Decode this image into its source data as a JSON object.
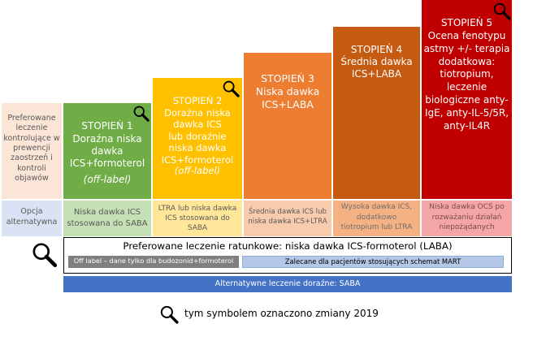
{
  "colors": {
    "pref_bg": "#fbe5d6",
    "alt_bg": "#dae3f3",
    "step1": "#70ad47",
    "step1_light": "#c5e0b4",
    "step2": "#ffc000",
    "step2_light": "#ffe699",
    "step3": "#ed7d31",
    "step3_light": "#f8cbad",
    "step4": "#c55a11",
    "step4_light": "#f4b183",
    "step5": "#c00000",
    "step5_light": "#f4a6a6",
    "offlabel_bar": "#7f7f7f",
    "mart_bar": "#b4c7e7",
    "saba_bar": "#4472c4"
  },
  "left": {
    "preferred_label": "Preferowane\nleczenie\nkontrolujące w\nprewencji\nzaostrzeń i\nkontroli\nobjawów",
    "alternative_label": "Opcja\nalternatywna"
  },
  "steps": [
    {
      "title": "STOPIEŃ 1",
      "body": "Doraźna niska\ndawka\nICS+formoterol",
      "note": "(off-label)",
      "alternative": "Niska dawka ICS\nstosowana do SABA"
    },
    {
      "title": "STOPIEŃ 2",
      "body": "Doraźna niska\ndawka ICS\nlub doraźnie\nniska dawka\nICS+formoterol",
      "note": "(off-label)",
      "alternative": "LTRA lub niska dawka\nICS stosowana do\nSABA"
    },
    {
      "title": "STOPIEŃ 3",
      "body": "Niska dawka\nICS+LABA",
      "alternative": "Średnia dawka ICS lub\nniska dawka ICS+LTRA"
    },
    {
      "title": "STOPIEŃ 4",
      "body": "Średnia dawka\nICS+LABA",
      "alternative": "Wysoka dawka ICS,\ndodatkowo\ntiotropium lub LTRA"
    },
    {
      "title": "STOPIEŃ 5",
      "body": "Ocena fenotypu\nastmy +/- terapia\ndodatkowa:\ntiotropium,\nleczenie\nbiologiczne anty-\nIgE, anty-IL-5/5R,\nanty-IL4R",
      "alternative": "Niska dawka OCS po\nrozważaniu działań\nniepożądanych"
    }
  ],
  "reliever": {
    "title": "Preferowane leczenie ratunkowe: niska dawka ICS-formoterol (LABA)",
    "offlabel": "Off label – dane tylko dla budozonid+formoterol",
    "mart": "Zalecane dla pacjentów stosujących schemat MART"
  },
  "saba": "Alternatywne leczenie doraźne: SABA",
  "legend": "tym symbolem oznaczono zmiany 2019",
  "icons": [
    "magnifier-icon"
  ]
}
